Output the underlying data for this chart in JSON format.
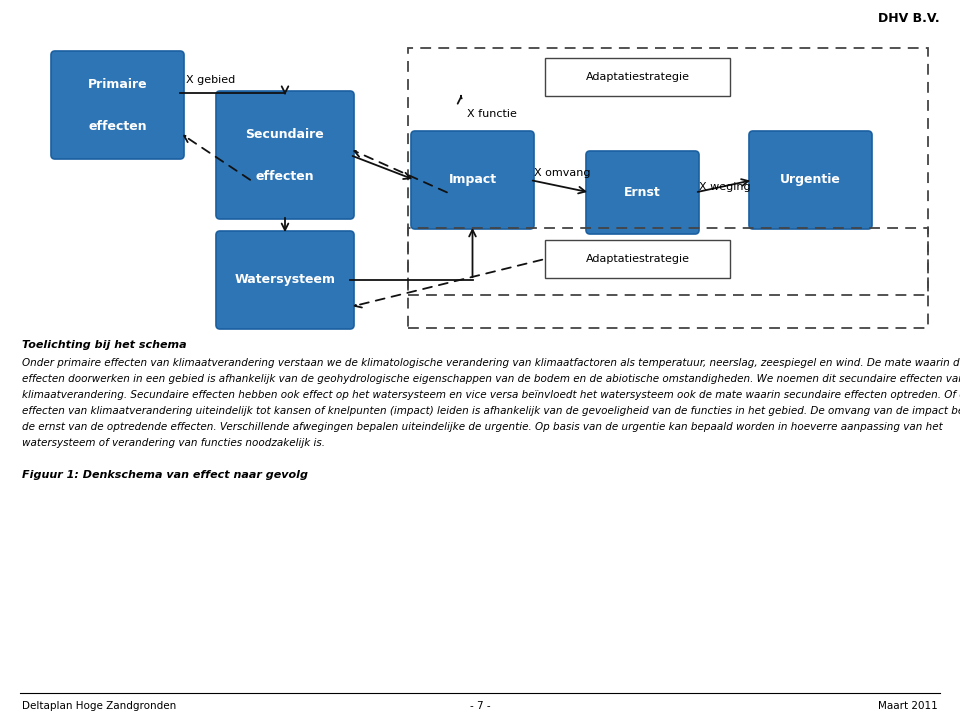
{
  "title_top_right": "DHV B.V.",
  "box_color": "#2e75b6",
  "bg_color": "#ffffff",
  "footer_left": "Deltaplan Hoge Zandgronden",
  "footer_right": "Maart 2011",
  "footer_page": "- 7 -",
  "caption": "Figuur 1: Denkschema van effect naar gevolg",
  "toelichting_header": "Toelichting bij het schema",
  "body_lines": [
    "Onder primaire effecten van klimaatverandering verstaan we de klimatologische verandering van klimaatfactoren als temperatuur, neerslag, zeespiegel en wind. De mate waarin deze",
    "effecten doorwerken in een gebied is afhankelijk van de geohydrologische eigenschappen van de bodem en de abiotische omstandigheden. We noemen dit secundaire effecten van",
    "klimaatverandering. Secundaire effecten hebben ook effect op het watersysteem en vice versa beïnvloedt het watersysteem ook de mate waarin secundaire effecten optreden. Of deze",
    "effecten van klimaatverandering uiteindelijk tot kansen of knelpunten (impact) leiden is afhankelijk van de gevoeligheid van de functies in het gebied. De omvang van de impact bepaalt",
    "de ernst van de optredende effecten. Verschillende afwegingen bepalen uiteindelijke de urgentie. Op basis van de urgentie kan bepaald worden in hoeverre aanpassing van het",
    "watersysteem of verandering van functies noodzakelijk is."
  ]
}
